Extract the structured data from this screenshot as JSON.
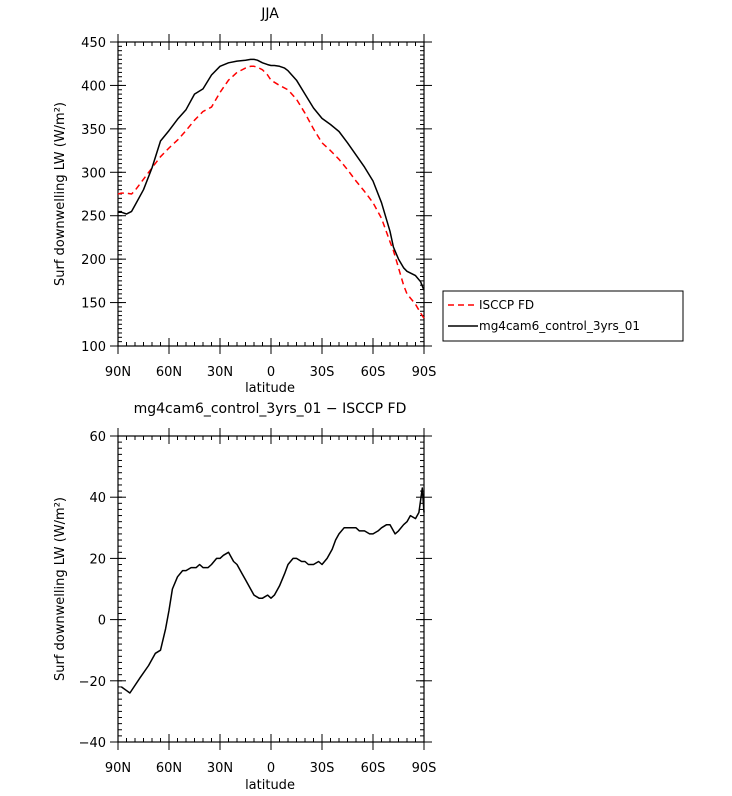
{
  "chart_data": [
    {
      "type": "line",
      "title": "JJA",
      "xlabel": "latitude",
      "ylabel": "Surf downwelling LW (W/m²)",
      "xlim": [
        90,
        -90
      ],
      "ylim": [
        100,
        450
      ],
      "xticks": [
        90,
        60,
        30,
        0,
        -30,
        -60,
        -90
      ],
      "xtick_labels": [
        "90N",
        "60N",
        "30N",
        "0",
        "30S",
        "60S",
        "90S"
      ],
      "yticks": [
        100,
        150,
        200,
        250,
        300,
        350,
        400,
        450
      ],
      "ytick_labels": [
        "100",
        "150",
        "200",
        "250",
        "300",
        "350",
        "400",
        "450"
      ],
      "legend": {
        "placement": "outside-right",
        "entries": [
          "ISCCP FD",
          "mg4cam6_control_3yrs_01"
        ]
      },
      "series": [
        {
          "name": "ISCCP FD",
          "color": "#ff0000",
          "dash": "dashed",
          "x": [
            90,
            88,
            85,
            82,
            80,
            75,
            70,
            65,
            60,
            55,
            50,
            45,
            40,
            35,
            30,
            25,
            20,
            15,
            12,
            10,
            8,
            5,
            2,
            0,
            -5,
            -10,
            -15,
            -20,
            -25,
            -30,
            -35,
            -40,
            -45,
            -50,
            -55,
            -60,
            -65,
            -70,
            -72,
            -75,
            -78,
            -80,
            -85,
            -88,
            -90
          ],
          "y": [
            275,
            276,
            276,
            275,
            279,
            292,
            305,
            318,
            328,
            337,
            348,
            360,
            370,
            375,
            392,
            406,
            415,
            420,
            422,
            422,
            421,
            418,
            412,
            406,
            400,
            395,
            384,
            368,
            350,
            334,
            325,
            315,
            303,
            290,
            278,
            265,
            247,
            220,
            210,
            190,
            170,
            160,
            148,
            138,
            132
          ]
        },
        {
          "name": "mg4cam6_control_3yrs_01",
          "color": "#000000",
          "dash": "solid",
          "x": [
            90,
            88,
            85,
            82,
            80,
            75,
            70,
            65,
            60,
            55,
            50,
            45,
            40,
            35,
            30,
            25,
            20,
            15,
            12,
            10,
            8,
            5,
            2,
            0,
            -2,
            -5,
            -8,
            -10,
            -15,
            -20,
            -25,
            -30,
            -35,
            -40,
            -45,
            -50,
            -55,
            -60,
            -65,
            -70,
            -72,
            -75,
            -78,
            -80,
            -85,
            -88,
            -90
          ],
          "y": [
            254,
            254,
            252,
            255,
            262,
            280,
            305,
            336,
            348,
            361,
            372,
            390,
            396,
            412,
            422,
            426,
            428,
            429,
            430,
            430,
            429,
            426,
            424,
            423,
            423,
            422,
            420,
            417,
            406,
            390,
            374,
            362,
            355,
            347,
            334,
            320,
            306,
            290,
            265,
            232,
            214,
            200,
            190,
            186,
            181,
            174,
            164
          ]
        }
      ]
    },
    {
      "type": "line",
      "title": "mg4cam6_control_3yrs_01 − ISCCP FD",
      "xlabel": "latitude",
      "ylabel": "Surf downwelling LW (W/m²)",
      "xlim": [
        90,
        -90
      ],
      "ylim": [
        -40,
        60
      ],
      "xticks": [
        90,
        60,
        30,
        0,
        -30,
        -60,
        -90
      ],
      "xtick_labels": [
        "90N",
        "60N",
        "30N",
        "0",
        "30S",
        "60S",
        "90S"
      ],
      "yticks": [
        -40,
        -20,
        0,
        20,
        40,
        60
      ],
      "ytick_labels": [
        "−40",
        "−20",
        "0",
        "20",
        "40",
        "60"
      ],
      "series": [
        {
          "name": "mg4cam6_control_3yrs_01 − ISCCP FD",
          "color": "#000000",
          "dash": "solid",
          "x": [
            88,
            83,
            77,
            72,
            68,
            65,
            62,
            60,
            58,
            55,
            52,
            50,
            47,
            44,
            42,
            40,
            37,
            35,
            32,
            30,
            28,
            25,
            22,
            20,
            17,
            15,
            12,
            10,
            7,
            5,
            2,
            0,
            -2,
            -5,
            -8,
            -10,
            -13,
            -15,
            -18,
            -20,
            -22,
            -25,
            -28,
            -30,
            -33,
            -36,
            -38,
            -40,
            -43,
            -46,
            -48,
            -50,
            -52,
            -55,
            -58,
            -60,
            -63,
            -65,
            -68,
            -70,
            -73,
            -75,
            -78,
            -80,
            -82,
            -85,
            -87,
            -89,
            -90
          ],
          "y": [
            -22,
            -24,
            -19,
            -15,
            -11,
            -10,
            -3,
            3,
            10,
            14,
            16,
            16,
            17,
            17,
            18,
            17,
            17,
            18,
            20,
            20,
            21,
            22,
            19,
            18,
            15,
            13,
            10,
            8,
            7,
            7,
            8,
            7,
            8,
            11,
            15,
            18,
            20,
            20,
            19,
            19,
            18,
            18,
            19,
            18,
            20,
            23,
            26,
            28,
            30,
            30,
            30,
            30,
            29,
            29,
            28,
            28,
            29,
            30,
            31,
            31,
            28,
            29,
            31,
            32,
            34,
            33,
            35,
            43,
            35
          ]
        }
      ]
    }
  ]
}
